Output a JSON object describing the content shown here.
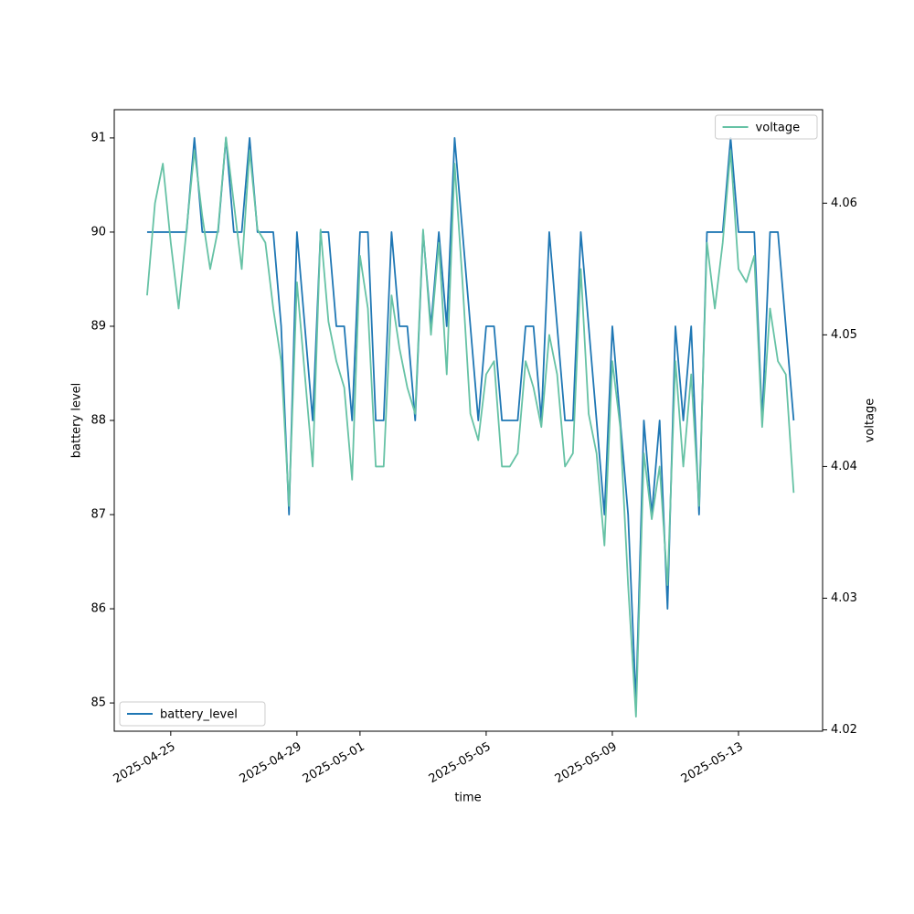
{
  "chart_data": {
    "type": "line",
    "x_label": "time",
    "y_label": "battery level",
    "y2_label": "voltage",
    "x": [
      "2025-04-24T06:00",
      "2025-04-24T12:00",
      "2025-04-24T18:00",
      "2025-04-25T00:00",
      "2025-04-25T06:00",
      "2025-04-25T12:00",
      "2025-04-25T18:00",
      "2025-04-26T00:00",
      "2025-04-26T06:00",
      "2025-04-26T12:00",
      "2025-04-26T18:00",
      "2025-04-27T00:00",
      "2025-04-27T06:00",
      "2025-04-27T12:00",
      "2025-04-27T18:00",
      "2025-04-28T00:00",
      "2025-04-28T06:00",
      "2025-04-28T12:00",
      "2025-04-28T18:00",
      "2025-04-29T00:00",
      "2025-04-29T06:00",
      "2025-04-29T12:00",
      "2025-04-29T18:00",
      "2025-04-30T00:00",
      "2025-04-30T06:00",
      "2025-04-30T12:00",
      "2025-04-30T18:00",
      "2025-05-01T00:00",
      "2025-05-01T06:00",
      "2025-05-01T12:00",
      "2025-05-01T18:00",
      "2025-05-02T00:00",
      "2025-05-02T06:00",
      "2025-05-02T12:00",
      "2025-05-02T18:00",
      "2025-05-03T00:00",
      "2025-05-03T06:00",
      "2025-05-03T12:00",
      "2025-05-03T18:00",
      "2025-05-04T00:00",
      "2025-05-04T06:00",
      "2025-05-04T12:00",
      "2025-05-04T18:00",
      "2025-05-05T00:00",
      "2025-05-05T06:00",
      "2025-05-05T12:00",
      "2025-05-05T18:00",
      "2025-05-06T00:00",
      "2025-05-06T06:00",
      "2025-05-06T12:00",
      "2025-05-06T18:00",
      "2025-05-07T00:00",
      "2025-05-07T06:00",
      "2025-05-07T12:00",
      "2025-05-07T18:00",
      "2025-05-08T00:00",
      "2025-05-08T06:00",
      "2025-05-08T12:00",
      "2025-05-08T18:00",
      "2025-05-09T00:00",
      "2025-05-09T06:00",
      "2025-05-09T12:00",
      "2025-05-09T18:00",
      "2025-05-10T00:00",
      "2025-05-10T06:00",
      "2025-05-10T12:00",
      "2025-05-10T18:00",
      "2025-05-11T00:00",
      "2025-05-11T06:00",
      "2025-05-11T12:00",
      "2025-05-11T18:00",
      "2025-05-12T00:00",
      "2025-05-12T06:00",
      "2025-05-12T12:00",
      "2025-05-12T18:00",
      "2025-05-13T00:00",
      "2025-05-13T06:00",
      "2025-05-13T12:00",
      "2025-05-13T18:00",
      "2025-05-14T00:00",
      "2025-05-14T06:00",
      "2025-05-14T12:00",
      "2025-05-14T18:00"
    ],
    "series": [
      {
        "name": "battery_level",
        "color": "#1f77b4",
        "legend": "lower left",
        "values": [
          90,
          90,
          90,
          90,
          90,
          90,
          91,
          90,
          90,
          90,
          91,
          90,
          90,
          91,
          90,
          90,
          90,
          89,
          87,
          90,
          89,
          88,
          90,
          90,
          89,
          89,
          88,
          90,
          90,
          88,
          88,
          90,
          89,
          89,
          88,
          90,
          89,
          90,
          89,
          91,
          90,
          89,
          88,
          89,
          89,
          88,
          88,
          88,
          89,
          89,
          88,
          90,
          89,
          88,
          88,
          90,
          89,
          88,
          87,
          89,
          88,
          87,
          85,
          88,
          87,
          88,
          86,
          89,
          88,
          89,
          87,
          90,
          90,
          90,
          91,
          90,
          90,
          90,
          88,
          90,
          90,
          89,
          88
        ]
      },
      {
        "name": "voltage",
        "color": "#66c2a5",
        "axis": "y2",
        "legend": "upper right",
        "values": [
          4.053,
          4.06,
          4.063,
          4.057,
          4.052,
          4.058,
          4.064,
          4.059,
          4.055,
          4.058,
          4.065,
          4.06,
          4.055,
          4.064,
          4.058,
          4.057,
          4.052,
          4.048,
          4.037,
          4.054,
          4.047,
          4.04,
          4.058,
          4.051,
          4.048,
          4.046,
          4.039,
          4.056,
          4.052,
          4.04,
          4.04,
          4.053,
          4.049,
          4.046,
          4.044,
          4.058,
          4.05,
          4.057,
          4.047,
          4.063,
          4.054,
          4.044,
          4.042,
          4.047,
          4.048,
          4.04,
          4.04,
          4.041,
          4.048,
          4.046,
          4.043,
          4.05,
          4.047,
          4.04,
          4.041,
          4.055,
          4.044,
          4.041,
          4.034,
          4.048,
          4.043,
          4.031,
          4.021,
          4.041,
          4.036,
          4.04,
          4.031,
          4.048,
          4.04,
          4.047,
          4.037,
          4.057,
          4.052,
          4.057,
          4.064,
          4.055,
          4.054,
          4.056,
          4.043,
          4.052,
          4.048,
          4.047,
          4.038
        ]
      }
    ],
    "xlim": [
      "2025-04-23T05:00",
      "2025-05-15T16:00"
    ],
    "xticks": [
      "2025-04-25",
      "2025-04-29",
      "2025-05-01",
      "2025-05-05",
      "2025-05-09",
      "2025-05-13"
    ],
    "ylim": [
      84.7,
      91.3
    ],
    "yticks": [
      85,
      86,
      87,
      88,
      89,
      90,
      91
    ],
    "y2lim": [
      4.0199,
      4.0671
    ],
    "y2ticks": [
      4.02,
      4.03,
      4.04,
      4.05,
      4.06
    ],
    "grid": false
  }
}
